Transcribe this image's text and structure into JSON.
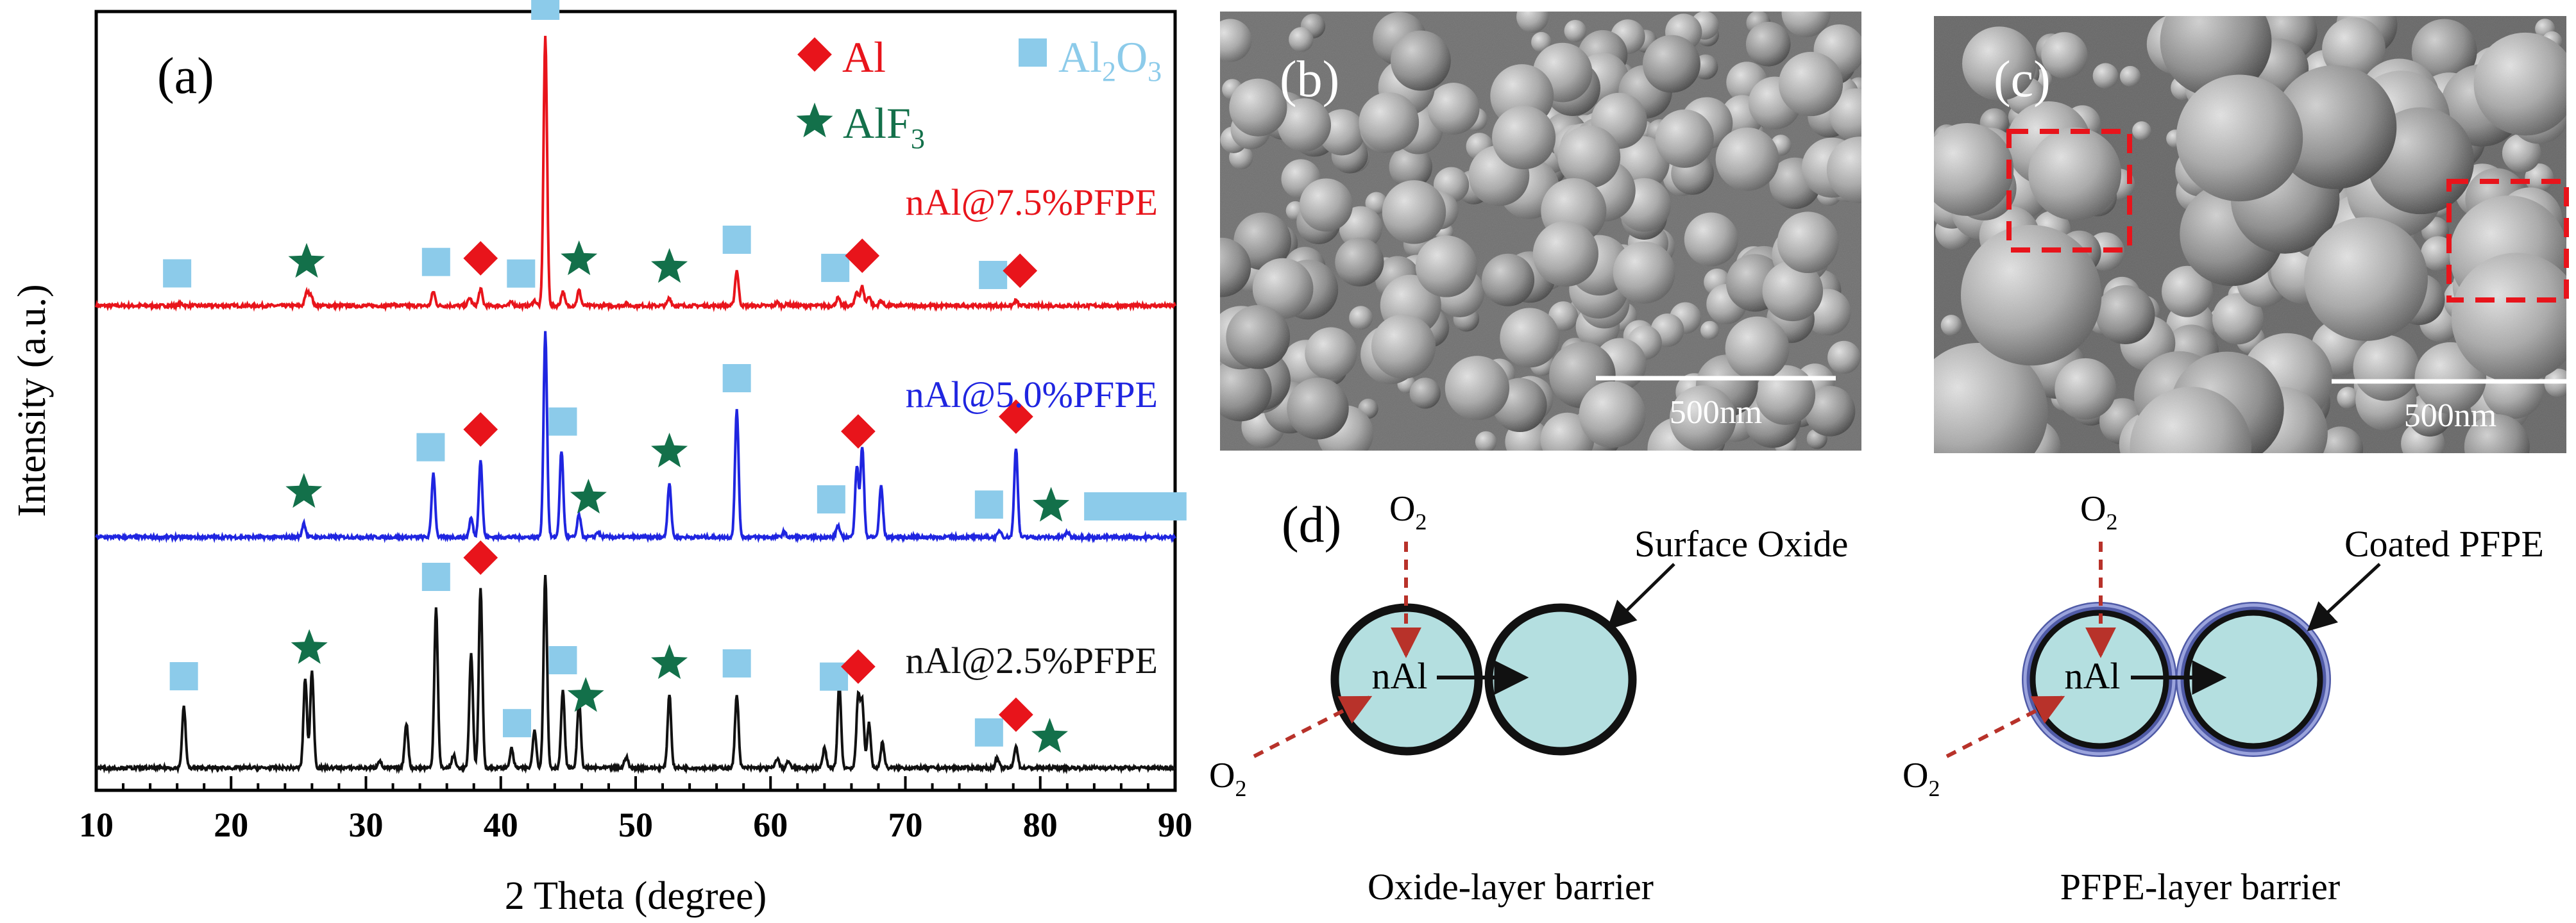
{
  "panels": {
    "a": {
      "label": "(a)",
      "chart_data": {
        "type": "line",
        "title": "",
        "xlabel": "2 Theta (degree)",
        "ylabel": "Intensity (a.u.)",
        "xlim": [
          10,
          90
        ],
        "xticks": [
          10,
          20,
          30,
          40,
          50,
          60,
          70,
          80,
          90
        ],
        "y_ticks_shown": false,
        "grid": false,
        "legend": {
          "placement": "top",
          "entries": [
            {
              "label": "Al",
              "marker": "diamond",
              "color": "#e8141b"
            },
            {
              "label_main": "Al",
              "label_sub": "2",
              "label_tail": "O",
              "label_sub2": "3",
              "marker": "square",
              "color": "#8ccbea"
            },
            {
              "label_main": "AlF",
              "label_sub": "3",
              "marker": "star",
              "color": "#13704a"
            }
          ]
        },
        "series": [
          {
            "name": "nAl@7.5%PFPE",
            "color": "#e8141b",
            "peaks": [
              [
                16.3,
                3
              ],
              [
                25.6,
                20
              ],
              [
                25.9,
                18
              ],
              [
                32,
                3
              ],
              [
                35,
                22
              ],
              [
                37.7,
                12
              ],
              [
                38.5,
                26
              ],
              [
                40.8,
                6
              ],
              [
                42.5,
                8
              ],
              [
                43.3,
                420
              ],
              [
                44.6,
                22
              ],
              [
                45.8,
                24
              ],
              [
                49.3,
                3
              ],
              [
                52.5,
                12
              ],
              [
                57.5,
                55
              ],
              [
                60.5,
                5
              ],
              [
                61.3,
                3
              ],
              [
                65,
                12
              ],
              [
                66.4,
                22
              ],
              [
                66.8,
                30
              ],
              [
                67.3,
                15
              ],
              [
                68.2,
                8
              ],
              [
                78.2,
                8
              ]
            ],
            "markers": [
              {
                "type": "square",
                "x": 16
              },
              {
                "type": "star",
                "x": 25.6
              },
              {
                "type": "square",
                "x": 35.2
              },
              {
                "type": "diamond",
                "x": 38.5
              },
              {
                "type": "square",
                "x": 41.5
              },
              {
                "type": "square",
                "x": 43.3
              },
              {
                "type": "star",
                "x": 45.8
              },
              {
                "type": "star",
                "x": 52.5
              },
              {
                "type": "square",
                "x": 57.5
              },
              {
                "type": "square",
                "x": 64.8
              },
              {
                "type": "diamond",
                "x": 66.8
              },
              {
                "type": "square",
                "x": 76.5
              },
              {
                "type": "diamond",
                "x": 78.5
              }
            ]
          },
          {
            "name": "nAl@5.0%PFPE",
            "color": "#1f25e0",
            "peaks": [
              [
                25.4,
                22
              ],
              [
                35,
                100
              ],
              [
                37.8,
                30
              ],
              [
                38.5,
                120
              ],
              [
                43.3,
                320
              ],
              [
                44.5,
                135
              ],
              [
                45.8,
                35
              ],
              [
                47.2,
                8
              ],
              [
                52.5,
                85
              ],
              [
                57.5,
                200
              ],
              [
                61,
                8
              ],
              [
                65,
                18
              ],
              [
                66.4,
                110
              ],
              [
                66.8,
                140
              ],
              [
                68.2,
                80
              ],
              [
                77,
                10
              ],
              [
                78.2,
                140
              ],
              [
                82,
                8
              ]
            ],
            "markers": [
              {
                "type": "star",
                "x": 25.4
              },
              {
                "type": "square",
                "x": 34.8
              },
              {
                "type": "diamond",
                "x": 38.5
              },
              {
                "type": "square",
                "x": 44.6
              },
              {
                "type": "star",
                "x": 46.5
              },
              {
                "type": "star",
                "x": 52.5
              },
              {
                "type": "square",
                "x": 57.5
              },
              {
                "type": "square",
                "x": 64.5
              },
              {
                "type": "diamond",
                "x": 66.5
              },
              {
                "type": "square",
                "x": 76.2
              },
              {
                "type": "diamond",
                "x": 78.2
              },
              {
                "type": "star",
                "x": 80.8
              },
              {
                "type": "square",
                "x": 84.3
              },
              {
                "type": "square",
                "x": 86.3
              },
              {
                "type": "square",
                "x": 88
              },
              {
                "type": "square",
                "x": 89.8
              }
            ]
          },
          {
            "name": "nAl@2.5%PFPE",
            "color": "#111111",
            "peaks": [
              [
                16.5,
                95
              ],
              [
                25.5,
                140
              ],
              [
                26,
                150
              ],
              [
                31,
                12
              ],
              [
                33,
                70
              ],
              [
                35.2,
                250
              ],
              [
                36.5,
                20
              ],
              [
                37.8,
                180
              ],
              [
                38.5,
                280
              ],
              [
                40.8,
                30
              ],
              [
                42.5,
                60
              ],
              [
                43.3,
                300
              ],
              [
                44.6,
                120
              ],
              [
                45.8,
                105
              ],
              [
                49.3,
                18
              ],
              [
                52.5,
                115
              ],
              [
                57.5,
                115
              ],
              [
                60.5,
                15
              ],
              [
                61.3,
                10
              ],
              [
                64,
                30
              ],
              [
                65.1,
                130
              ],
              [
                66.5,
                110
              ],
              [
                66.8,
                100
              ],
              [
                67.3,
                70
              ],
              [
                68.3,
                40
              ],
              [
                76.8,
                15
              ],
              [
                78.2,
                35
              ]
            ],
            "markers": [
              {
                "type": "square",
                "x": 16.5
              },
              {
                "type": "star",
                "x": 25.8
              },
              {
                "type": "square",
                "x": 35.2
              },
              {
                "type": "diamond",
                "x": 38.5
              },
              {
                "type": "square",
                "x": 41.2
              },
              {
                "type": "square",
                "x": 44.6
              },
              {
                "type": "star",
                "x": 46.3
              },
              {
                "type": "star",
                "x": 52.5
              },
              {
                "type": "square",
                "x": 57.5
              },
              {
                "type": "square",
                "x": 64.7
              },
              {
                "type": "diamond",
                "x": 66.5
              },
              {
                "type": "square",
                "x": 76.2
              },
              {
                "type": "diamond",
                "x": 78.2
              },
              {
                "type": "star",
                "x": 80.7
              }
            ]
          }
        ]
      }
    },
    "b": {
      "label": "(b)",
      "scale_bar": "500nm"
    },
    "c": {
      "label": "(c)",
      "scale_bar": "500nm"
    },
    "d": {
      "label": "(d)",
      "left": {
        "o2_main": "O",
        "o2_sub": "2",
        "core_label": "nAl",
        "shell_label": "Surface Oxide",
        "caption": "Oxide-layer barrier"
      },
      "right": {
        "o2_main": "O",
        "o2_sub": "2",
        "core_label": "nAl",
        "shell_label": "Coated PFPE",
        "caption": "PFPE-layer barrier"
      }
    }
  }
}
